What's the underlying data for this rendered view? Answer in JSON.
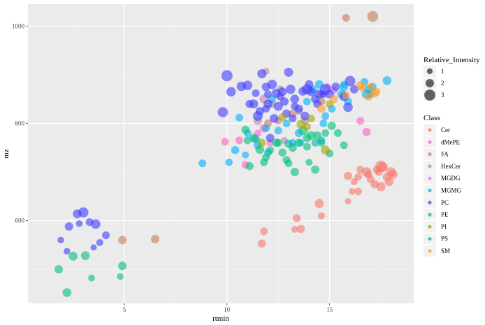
{
  "chart_data": {
    "type": "scatter",
    "xlabel": "rtmin",
    "ylabel": "mz",
    "xlim": [
      0.3,
      19.1
    ],
    "ylim": [
      430,
      1045
    ],
    "xticks": [
      5,
      10,
      15
    ],
    "yticks": [
      600,
      800,
      1000
    ],
    "xtick_labels": [
      "5",
      "10",
      "15"
    ],
    "ytick_labels": [
      "600",
      "800",
      "1000"
    ],
    "grid": true,
    "size_legend": {
      "title": "Relative_Intensity",
      "items": [
        {
          "label": "1",
          "value": 1
        },
        {
          "label": "2",
          "value": 2
        },
        {
          "label": "3",
          "value": 3
        }
      ]
    },
    "class_legend": {
      "title": "Class",
      "placement": "right"
    },
    "classes": [
      {
        "name": "Cer",
        "color": "#F8766D"
      },
      {
        "name": "dMePE",
        "color": "#FF61C3"
      },
      {
        "name": "FA",
        "color": "#C77C5A"
      },
      {
        "name": "HexCer",
        "color": "#B88AA8"
      },
      {
        "name": "MGDG",
        "color": "#E76BF3"
      },
      {
        "name": "MGMG",
        "color": "#00B0F6"
      },
      {
        "name": "PC",
        "color": "#3D3DFF"
      },
      {
        "name": "PE",
        "color": "#00BF7D"
      },
      {
        "name": "PI",
        "color": "#A3A500"
      },
      {
        "name": "PS",
        "color": "#00B5B0"
      },
      {
        "name": "SM",
        "color": "#FF9D2B"
      }
    ],
    "series": [
      {
        "name": "Cer",
        "points": [
          [
            17.6,
            710,
            1.6
          ],
          [
            17.3,
            705,
            1.0
          ],
          [
            17.8,
            690,
            1.2
          ],
          [
            17.9,
            680,
            1.3
          ],
          [
            18.0,
            700,
            1.5
          ],
          [
            17.5,
            670,
            1.4
          ],
          [
            17.2,
            675,
            1.1
          ],
          [
            16.9,
            695,
            1.0
          ],
          [
            16.5,
            705,
            1.0
          ],
          [
            16.4,
            690,
            0.9
          ],
          [
            16.4,
            660,
            0.9
          ],
          [
            16.2,
            680,
            0.8
          ],
          [
            15.9,
            692,
            1.2
          ],
          [
            15.9,
            640,
            0.6
          ],
          [
            16.1,
            660,
            0.7
          ],
          [
            16.8,
            700,
            1.5
          ],
          [
            17.0,
            685,
            1.0
          ],
          [
            18.1,
            695,
            1.3
          ],
          [
            14.5,
            635,
            1.4
          ],
          [
            14.6,
            610,
            0.8
          ],
          [
            13.4,
            605,
            1.1
          ],
          [
            13.6,
            583,
            1.1
          ],
          [
            13.3,
            582,
            0.7
          ],
          [
            11.8,
            578,
            1.0
          ],
          [
            11.7,
            553,
            1.1
          ],
          [
            17.5,
            712,
            2.0
          ],
          [
            17.4,
            700,
            1.0
          ]
        ]
      },
      {
        "name": "dMePE",
        "points": [
          [
            16.8,
            782,
            1.2
          ],
          [
            16.5,
            805,
            1.0
          ],
          [
            11.8,
            790,
            1.2
          ],
          [
            12.1,
            760,
            0.8
          ],
          [
            10.9,
            715,
            1.0
          ],
          [
            10.6,
            765,
            1.0
          ],
          [
            9.9,
            762,
            1.0
          ],
          [
            11.5,
            780,
            0.8
          ]
        ]
      },
      {
        "name": "FA",
        "points": [
          [
            4.9,
            560,
            1.2
          ],
          [
            6.5,
            562,
            1.2
          ],
          [
            15.8,
            1017,
            1.0
          ],
          [
            17.1,
            1020,
            1.9
          ],
          [
            14.6,
            845,
            1.0
          ],
          [
            13.2,
            820,
            1.0
          ],
          [
            12.0,
            800,
            1.0
          ],
          [
            12.5,
            805,
            0.8
          ]
        ]
      },
      {
        "name": "HexCer",
        "points": [
          [
            11.8,
            850,
            1.3
          ],
          [
            12.2,
            840,
            1.0
          ],
          [
            12.6,
            870,
            0.9
          ],
          [
            11.5,
            805,
            1.2
          ],
          [
            13.8,
            805,
            1.0
          ],
          [
            11.9,
            907,
            0.8
          ],
          [
            12.8,
            765,
            0.8
          ],
          [
            13.5,
            825,
            1.0
          ]
        ]
      },
      {
        "name": "MGDG",
        "points": [
          [
            14.6,
            860,
            1.0
          ],
          [
            15.2,
            868,
            0.9
          ],
          [
            14.9,
            875,
            0.9
          ]
        ]
      },
      {
        "name": "MGMG",
        "points": [
          [
            17.8,
            888,
            1.3
          ],
          [
            16.8,
            860,
            1.5
          ],
          [
            16.9,
            870,
            1.2
          ],
          [
            17.0,
            860,
            1.0
          ],
          [
            15.6,
            860,
            1.4
          ],
          [
            15.7,
            875,
            1.2
          ],
          [
            15.9,
            845,
            1.1
          ],
          [
            15.7,
            880,
            0.9
          ],
          [
            15.1,
            830,
            1.0
          ],
          [
            14.7,
            800,
            1.0
          ],
          [
            14.5,
            880,
            1.2
          ],
          [
            14.2,
            870,
            1.0
          ],
          [
            13.5,
            780,
            1.1
          ],
          [
            13.2,
            760,
            1.0
          ],
          [
            12.5,
            785,
            1.0
          ],
          [
            11.9,
            790,
            1.0
          ],
          [
            11.5,
            755,
            1.2
          ],
          [
            11.0,
            780,
            1.0
          ],
          [
            10.9,
            735,
            0.8
          ],
          [
            10.4,
            745,
            1.1
          ],
          [
            10.1,
            720,
            0.9
          ],
          [
            8.8,
            718,
            1.0
          ],
          [
            10.6,
            812,
            1.0
          ],
          [
            12.9,
            800,
            1.0
          ],
          [
            13.9,
            845,
            1.0
          ],
          [
            14.8,
            815,
            1.0
          ],
          [
            12.2,
            850,
            1.0
          ],
          [
            13.6,
            760,
            0.8
          ],
          [
            16.7,
            885,
            1.0
          ],
          [
            17.1,
            875,
            1.0
          ]
        ]
      },
      {
        "name": "PC",
        "points": [
          [
            10.0,
            898,
            2.0
          ],
          [
            9.8,
            823,
            1.7
          ],
          [
            10.2,
            865,
            1.5
          ],
          [
            10.7,
            876,
            1.5
          ],
          [
            11.0,
            878,
            1.5
          ],
          [
            11.3,
            840,
            1.4
          ],
          [
            11.5,
            815,
            1.6
          ],
          [
            11.7,
            902,
            1.4
          ],
          [
            11.9,
            875,
            1.2
          ],
          [
            12.0,
            840,
            1.3
          ],
          [
            12.2,
            880,
            1.5
          ],
          [
            12.4,
            862,
            1.4
          ],
          [
            12.5,
            835,
            1.4
          ],
          [
            12.7,
            865,
            1.3
          ],
          [
            12.8,
            845,
            1.2
          ],
          [
            13.0,
            905,
            1.4
          ],
          [
            13.1,
            870,
            1.5
          ],
          [
            13.3,
            850,
            1.3
          ],
          [
            13.5,
            830,
            1.2
          ],
          [
            13.7,
            866,
            1.3
          ],
          [
            13.9,
            870,
            1.7
          ],
          [
            14.1,
            865,
            1.3
          ],
          [
            14.3,
            850,
            1.2
          ],
          [
            14.5,
            860,
            1.4
          ],
          [
            14.8,
            870,
            1.9
          ],
          [
            15.0,
            860,
            1.3
          ],
          [
            15.3,
            875,
            1.2
          ],
          [
            15.7,
            855,
            1.4
          ],
          [
            15.9,
            833,
            1.5
          ],
          [
            16.0,
            887,
            1.8
          ],
          [
            16.2,
            870,
            1.2
          ],
          [
            11.1,
            840,
            1.1
          ],
          [
            11.6,
            825,
            1.2
          ],
          [
            12.3,
            810,
            1.3
          ],
          [
            12.9,
            820,
            1.2
          ],
          [
            13.2,
            810,
            1.0
          ],
          [
            13.8,
            815,
            1.3
          ],
          [
            14.0,
            880,
            1.2
          ],
          [
            14.4,
            840,
            1.1
          ],
          [
            12.1,
            770,
            1.2
          ],
          [
            13.3,
            835,
            1.0
          ],
          [
            2.3,
            588,
            1.2
          ],
          [
            2.7,
            614,
            1.3
          ],
          [
            3.0,
            617,
            1.7
          ],
          [
            3.3,
            597,
            1.0
          ],
          [
            3.6,
            593,
            1.5
          ],
          [
            4.1,
            570,
            1.0
          ],
          [
            3.8,
            555,
            0.8
          ],
          [
            1.9,
            560,
            0.7
          ],
          [
            2.2,
            537,
            0.7
          ],
          [
            3.5,
            545,
            0.6
          ],
          [
            2.8,
            594,
            0.7
          ],
          [
            11.9,
            830,
            1.0
          ],
          [
            12.6,
            855,
            1.0
          ],
          [
            14.7,
            860,
            0.9
          ],
          [
            12.0,
            860,
            1.0
          ],
          [
            11.4,
            862,
            1.0
          ]
        ]
      },
      {
        "name": "PE",
        "points": [
          [
            2.5,
            527,
            1.3
          ],
          [
            3.1,
            528,
            1.3
          ],
          [
            1.8,
            500,
            1.2
          ],
          [
            2.2,
            452,
            1.3
          ],
          [
            4.9,
            507,
            1.2
          ],
          [
            3.4,
            482,
            0.7
          ],
          [
            4.8,
            485,
            0.7
          ],
          [
            10.9,
            787,
            1.1
          ],
          [
            11.0,
            765,
            1.0
          ],
          [
            11.3,
            770,
            1.2
          ],
          [
            11.6,
            746,
            1.3
          ],
          [
            11.9,
            730,
            1.0
          ],
          [
            12.1,
            745,
            1.0
          ],
          [
            12.4,
            760,
            1.2
          ],
          [
            12.7,
            740,
            1.1
          ],
          [
            12.9,
            725,
            1.0
          ],
          [
            13.2,
            750,
            1.2
          ],
          [
            13.5,
            760,
            1.1
          ],
          [
            13.7,
            785,
            1.4
          ],
          [
            13.9,
            770,
            1.2
          ],
          [
            14.1,
            775,
            1.3
          ],
          [
            14.4,
            775,
            1.1
          ],
          [
            14.6,
            760,
            1.0
          ],
          [
            14.8,
            780,
            1.0
          ],
          [
            15.1,
            795,
            1.2
          ],
          [
            15.4,
            780,
            1.0
          ],
          [
            15.7,
            755,
            1.0
          ],
          [
            13.3,
            700,
            1.2
          ],
          [
            14.3,
            705,
            1.2
          ],
          [
            13.0,
            718,
            1.0
          ],
          [
            13.9,
            752,
            1.0
          ],
          [
            11.1,
            712,
            1.1
          ],
          [
            11.8,
            720,
            1.0
          ],
          [
            12.5,
            760,
            1.0
          ],
          [
            14.0,
            720,
            0.8
          ],
          [
            15.0,
            738,
            1.0
          ]
        ]
      },
      {
        "name": "PI",
        "points": [
          [
            14.8,
            745,
            1.4
          ],
          [
            15.0,
            840,
            1.0
          ],
          [
            13.6,
            798,
            1.3
          ],
          [
            13.9,
            793,
            1.0
          ],
          [
            11.7,
            760,
            1.1
          ],
          [
            12.7,
            813,
            1.0
          ],
          [
            14.1,
            810,
            1.0
          ]
        ]
      },
      {
        "name": "PS",
        "points": [
          [
            13.0,
            758,
            1.2
          ],
          [
            14.3,
            760,
            1.0
          ],
          [
            11.4,
            768,
            1.2
          ],
          [
            12.0,
            740,
            1.0
          ],
          [
            14.6,
            765,
            1.0
          ]
        ]
      },
      {
        "name": "SM",
        "points": [
          [
            16.5,
            878,
            1.3
          ],
          [
            17.2,
            862,
            1.2
          ],
          [
            17.3,
            865,
            1.0
          ],
          [
            16.9,
            855,
            1.1
          ],
          [
            16.6,
            873,
            1.0
          ],
          [
            15.2,
            850,
            1.2
          ],
          [
            14.6,
            830,
            1.2
          ],
          [
            15.8,
            858,
            1.0
          ],
          [
            17.0,
            875,
            1.0
          ]
        ]
      }
    ]
  }
}
